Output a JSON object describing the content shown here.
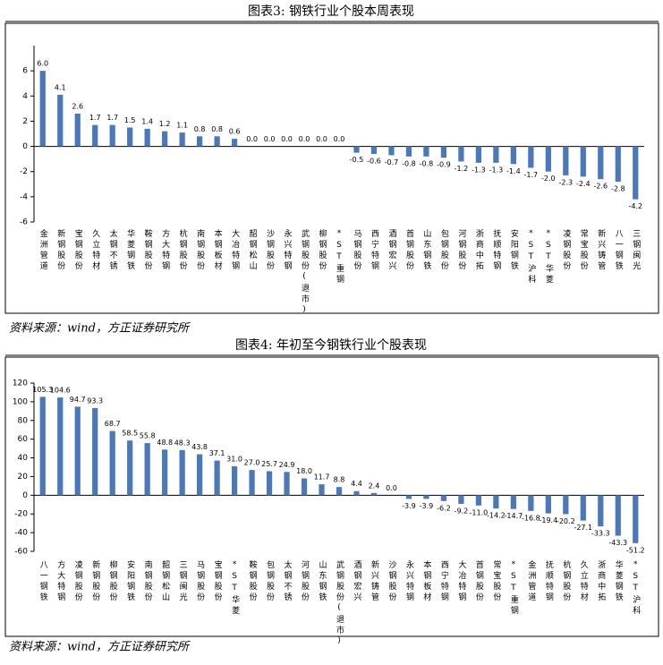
{
  "chart_data": [
    {
      "type": "bar",
      "title": "图表3:  钢铁行业个股本周表现",
      "source": "资料来源：wind，方正证券研究所",
      "color": "#4a78b8",
      "categories": [
        "金洲管道",
        "新钢股份",
        "宝钢股份",
        "久立特材",
        "太钢不锈",
        "华菱钢铁",
        "鞍钢股份",
        "方大特钢",
        "杭钢股份",
        "南钢股份",
        "本钢板材",
        "大冶特钢",
        "韶钢松山",
        "沙钢股份",
        "永兴特钢",
        "武钢股份(退市)",
        "柳钢股份",
        "*ST重钢",
        "马钢股份",
        "西宁特钢",
        "酒钢宏兴",
        "首钢股份",
        "山东钢铁",
        "包钢股份",
        "河钢股份",
        "浙商中拓",
        "抚顺特钢",
        "安阳钢铁",
        "*ST沪科",
        "*ST华菱",
        "凌钢股份",
        "常宝股份",
        "新兴铸管",
        "八一钢铁",
        "三钢闽光"
      ],
      "values": [
        6.0,
        4.1,
        2.6,
        1.7,
        1.7,
        1.5,
        1.4,
        1.2,
        1.1,
        0.8,
        0.8,
        0.6,
        0.0,
        0.0,
        0.0,
        0.0,
        0.0,
        0.0,
        -0.5,
        -0.6,
        -0.7,
        -0.8,
        -0.8,
        -0.9,
        -1.2,
        -1.3,
        -1.3,
        -1.4,
        -1.7,
        -2.0,
        -2.3,
        -2.4,
        -2.6,
        -2.8,
        -4.2
      ],
      "value_labels": [
        "6.0",
        "4.1",
        "2.6",
        "1.7",
        "1.7",
        "1.5",
        "1.4",
        "1.2",
        "1.1",
        "0.8",
        "0.8",
        "0.6",
        "0.0",
        "0.0",
        "0.0",
        "0.0",
        "0.0",
        "0.0",
        "-0.5",
        "-0.6",
        "-0.7",
        "-0.8",
        "-0.8",
        "-0.9",
        "-1.2",
        "-1.3",
        "-1.3",
        "-1.4",
        "-1.7",
        "-2.0",
        "-2.3",
        "-2.4",
        "-2.6",
        "-2.8",
        "-4.2"
      ],
      "ylim": [
        -6,
        8
      ],
      "yticks": [
        -6,
        -4,
        -2,
        0,
        2,
        4,
        6
      ]
    },
    {
      "type": "bar",
      "title": "图表4:  年初至今钢铁行业个股表现",
      "source": "资料来源：wind，方正证券研究所",
      "color": "#4a78b8",
      "categories": [
        "八一钢铁",
        "方大特钢",
        "凌钢股份",
        "新钢股份",
        "柳钢股份",
        "安阳钢铁",
        "南钢股份",
        "韶钢松山",
        "三钢闽光",
        "马钢股份",
        "宝钢股份",
        "*ST华菱",
        "鞍钢股份",
        "包钢股份",
        "太钢不锈",
        "河钢股份",
        "山东钢铁",
        "武钢股份(退市)",
        "酒钢宏兴",
        "新兴铸管",
        "沙钢股份",
        "永兴特钢",
        "本钢板材",
        "西宁特钢",
        "大冶特钢",
        "首钢股份",
        "常宝股份",
        "*ST重钢",
        "金洲管道",
        "抚顺特钢",
        "杭钢股份",
        "久立特材",
        "浙商中拓",
        "华菱钢铁",
        "*ST沪科"
      ],
      "values": [
        105.3,
        104.6,
        94.7,
        93.3,
        68.7,
        58.5,
        55.8,
        48.8,
        48.3,
        43.8,
        37.1,
        31.0,
        27.0,
        25.7,
        24.9,
        18.0,
        11.7,
        8.8,
        4.4,
        2.4,
        0.0,
        -3.9,
        -3.9,
        -6.2,
        -9.2,
        -11.0,
        -14.2,
        -14.7,
        -16.8,
        -19.4,
        -20.2,
        -27.1,
        -33.3,
        -43.3,
        -51.2
      ],
      "value_labels": [
        "105.3",
        "104.6",
        "94.7",
        "93.3",
        "68.7",
        "58.5",
        "55.8",
        "48.8",
        "48.3",
        "43.8",
        "37.1",
        "31.0",
        "27.0",
        "25.7",
        "24.9",
        "18.0",
        "11.7",
        "8.8",
        "4.4",
        "2.4",
        "0.0",
        "-3.9",
        "-3.9",
        "-6.2",
        "-9.2",
        "-11.0",
        "-14.2",
        "-14.7",
        "-16.8",
        "-19.4",
        "-20.2",
        "-27.1",
        "-33.3",
        "-43.3",
        "-51.2"
      ],
      "ylim": [
        -60,
        120
      ],
      "yticks": [
        -60,
        -40,
        -20,
        0,
        20,
        40,
        60,
        80,
        100,
        120
      ]
    }
  ]
}
